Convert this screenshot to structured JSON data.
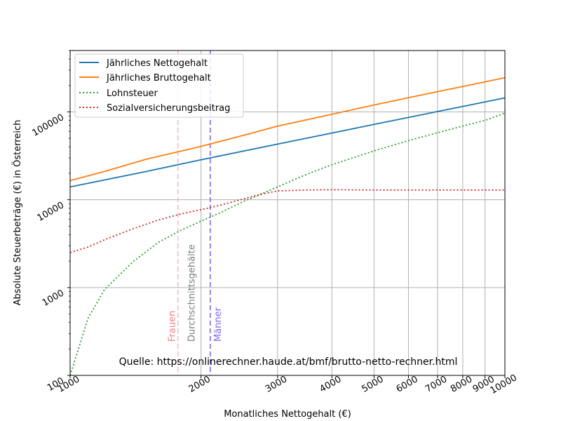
{
  "chart_data": {
    "type": "line",
    "xscale": "log",
    "yscale": "log",
    "xlim": [
      1000,
      10000
    ],
    "ylim": [
      100,
      500000
    ],
    "xlabel": "Monatliches Nettogehalt (€)",
    "ylabel": "Absolute Steuerbeträge (€) in Österreich",
    "grid": true,
    "legend_position": "upper-left",
    "x_ticks": [
      {
        "value": 1000,
        "label": "1000"
      },
      {
        "value": 2000,
        "label": "2000"
      },
      {
        "value": 3000,
        "label": "3000"
      },
      {
        "value": 4000,
        "label": "4000"
      },
      {
        "value": 5000,
        "label": "5000"
      },
      {
        "value": 6000,
        "label": "6000"
      },
      {
        "value": 7000,
        "label": "7000"
      },
      {
        "value": 8000,
        "label": "8000"
      },
      {
        "value": 9000,
        "label": "9000"
      },
      {
        "value": 10000,
        "label": "10000"
      }
    ],
    "y_ticks": [
      {
        "value": 100,
        "label": "100"
      },
      {
        "value": 1000,
        "label": "1000"
      },
      {
        "value": 10000,
        "label": "10000"
      },
      {
        "value": 100000,
        "label": "100000"
      }
    ],
    "series": [
      {
        "name": "Jährliches Nettogehalt",
        "color": "#1f77b4",
        "style": "solid",
        "x": [
          1000,
          1500,
          2000,
          3000,
          4000,
          5000,
          6000,
          7000,
          8000,
          9000,
          10000
        ],
        "y": [
          14000,
          21000,
          28500,
          43000,
          57500,
          72000,
          86500,
          101000,
          115500,
          130000,
          144500
        ]
      },
      {
        "name": "Jährliches Bruttogehalt",
        "color": "#ff7f0e",
        "style": "solid",
        "x": [
          1000,
          1200,
          1500,
          2000,
          2500,
          3000,
          4000,
          5000,
          6000,
          7000,
          8000,
          9000,
          10000
        ],
        "y": [
          16500,
          21000,
          29000,
          40500,
          54000,
          69000,
          94000,
          120000,
          145000,
          170000,
          195000,
          220000,
          245000
        ]
      },
      {
        "name": "Lohnsteuer",
        "color": "#2ca02c",
        "style": "dotted",
        "x": [
          1000,
          1100,
          1200,
          1400,
          1600,
          1800,
          2000,
          2200,
          2500,
          3000,
          3500,
          4000,
          5000,
          6000,
          7000,
          8000,
          9000,
          10000
        ],
        "y": [
          100,
          450,
          950,
          2000,
          3300,
          4500,
          5700,
          7000,
          9500,
          14000,
          19500,
          25000,
          36000,
          47000,
          58000,
          69000,
          80000,
          97000
        ]
      },
      {
        "name": "Sozialversicherungsbeitrag",
        "color": "#d62728",
        "style": "dotted",
        "x": [
          1000,
          1100,
          1200,
          1400,
          1600,
          1800,
          2000,
          2200,
          2500,
          2800,
          3000,
          3500,
          4000,
          5000,
          6000,
          7000,
          8000,
          9000,
          10000
        ],
        "y": [
          2500,
          2900,
          3500,
          4700,
          5900,
          6900,
          7700,
          8600,
          10200,
          11800,
          12600,
          12900,
          13000,
          12900,
          12900,
          12900,
          12900,
          12900,
          12900
        ]
      }
    ],
    "vlines": [
      {
        "name": "frauen",
        "x": 1770,
        "label": "Frauen",
        "color": "#ffb6c1",
        "label_color": "#f08080"
      },
      {
        "name": "maenner",
        "x": 2100,
        "label": "Männer",
        "color": "#7b68ee",
        "label_color": "#7b68ee"
      }
    ],
    "annotations": [
      {
        "text": "Durchschnittsgehälte",
        "x": 1955,
        "y": 350,
        "color": "#808080"
      }
    ],
    "source_text": "Quelle: https://onlinerechner.haude.at/bmf/brutto-netto-rechner.html"
  }
}
